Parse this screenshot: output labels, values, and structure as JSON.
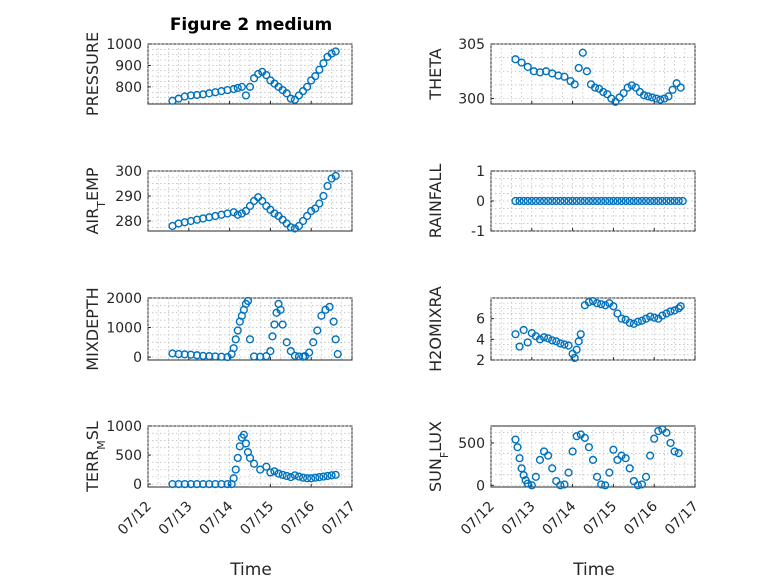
{
  "figure": {
    "title": "Figure 2 medium",
    "xlabel": "Time",
    "x_tick_labels": [
      "07/12",
      "07/13",
      "07/14",
      "07/15",
      "07/16",
      "07/17"
    ],
    "marker_color": "#0072BD"
  },
  "chart_data": [
    {
      "type": "scatter",
      "title": "Figure 2 medium",
      "ylabel": "PRESSURE",
      "ylim": [
        720,
        1000
      ],
      "yticks": [
        800,
        900,
        1000
      ],
      "xlim": [
        "07/12",
        "07/17"
      ],
      "grid": true,
      "series": [
        {
          "x": [
            0.6,
            0.75,
            0.9,
            1.05,
            1.2,
            1.35,
            1.5,
            1.65,
            1.8,
            1.95,
            2.1,
            2.2,
            2.3,
            2.4,
            2.5,
            2.6,
            2.7,
            2.8,
            2.9,
            3.0,
            3.1,
            3.2,
            3.3,
            3.4,
            3.5,
            3.6,
            3.7,
            3.8,
            3.9,
            4.0,
            4.1,
            4.2,
            4.3,
            4.4,
            4.5,
            4.6
          ],
          "y": [
            735,
            745,
            755,
            760,
            762,
            765,
            770,
            775,
            780,
            785,
            790,
            795,
            800,
            760,
            800,
            840,
            860,
            870,
            855,
            830,
            815,
            800,
            785,
            770,
            745,
            740,
            760,
            780,
            800,
            830,
            850,
            880,
            910,
            940,
            955,
            965
          ]
        }
      ]
    },
    {
      "type": "scatter",
      "ylabel": "THETA",
      "ylim": [
        299.5,
        305
      ],
      "yticks": [
        300,
        305
      ],
      "xlim": [
        "07/12",
        "07/17"
      ],
      "grid": true,
      "series": [
        {
          "x": [
            0.6,
            0.75,
            0.9,
            1.05,
            1.2,
            1.35,
            1.5,
            1.65,
            1.8,
            1.95,
            2.05,
            2.15,
            2.25,
            2.35,
            2.45,
            2.55,
            2.65,
            2.75,
            2.85,
            2.95,
            3.05,
            3.15,
            3.25,
            3.35,
            3.45,
            3.55,
            3.65,
            3.75,
            3.85,
            3.95,
            4.05,
            4.15,
            4.25,
            4.35,
            4.45,
            4.55,
            4.65
          ],
          "y": [
            303.6,
            303.3,
            302.9,
            302.5,
            302.4,
            302.5,
            302.3,
            302.1,
            302.0,
            301.6,
            301.3,
            302.8,
            304.2,
            302.5,
            301.3,
            301.0,
            300.9,
            300.6,
            300.4,
            300.0,
            299.7,
            300.1,
            300.5,
            301.0,
            301.2,
            301.0,
            300.6,
            300.3,
            300.2,
            300.1,
            300.0,
            299.9,
            300.0,
            300.2,
            300.8,
            301.4,
            301.0
          ]
        }
      ]
    },
    {
      "type": "scatter",
      "ylabel": "AIR_TEMP",
      "ylim": [
        276,
        300
      ],
      "yticks": [
        280,
        290,
        300
      ],
      "xlim": [
        "07/12",
        "07/17"
      ],
      "grid": true,
      "series": [
        {
          "x": [
            0.6,
            0.75,
            0.9,
            1.05,
            1.2,
            1.35,
            1.5,
            1.65,
            1.8,
            1.95,
            2.1,
            2.2,
            2.3,
            2.4,
            2.5,
            2.6,
            2.7,
            2.8,
            2.9,
            3.0,
            3.1,
            3.2,
            3.3,
            3.4,
            3.5,
            3.6,
            3.7,
            3.8,
            3.9,
            4.0,
            4.1,
            4.2,
            4.3,
            4.4,
            4.5,
            4.6
          ],
          "y": [
            278,
            279,
            279.5,
            280,
            280.5,
            281,
            281.5,
            282,
            282.5,
            283,
            283.5,
            282.5,
            283,
            284,
            286,
            288,
            289.5,
            288,
            286,
            284.5,
            283,
            282,
            280.5,
            279,
            277.5,
            277,
            278,
            280,
            282,
            284,
            285,
            287,
            290,
            294,
            297,
            298
          ]
        }
      ]
    },
    {
      "type": "scatter",
      "ylabel": "RAINFALL",
      "ylim": [
        -1,
        1
      ],
      "yticks": [
        -1,
        0,
        1
      ],
      "xlim": [
        "07/12",
        "07/17"
      ],
      "grid": true,
      "series": [
        {
          "x": [
            0.6,
            0.7,
            0.8,
            0.9,
            1.0,
            1.1,
            1.2,
            1.3,
            1.4,
            1.5,
            1.6,
            1.7,
            1.8,
            1.9,
            2.0,
            2.1,
            2.2,
            2.3,
            2.4,
            2.5,
            2.6,
            2.7,
            2.8,
            2.9,
            3.0,
            3.1,
            3.2,
            3.3,
            3.4,
            3.5,
            3.6,
            3.7,
            3.8,
            3.9,
            4.0,
            4.1,
            4.2,
            4.3,
            4.4,
            4.5,
            4.6,
            4.7
          ],
          "y": [
            0,
            0,
            0,
            0,
            0,
            0,
            0,
            0,
            0,
            0,
            0,
            0,
            0,
            0,
            0,
            0,
            0,
            0,
            0,
            0,
            0,
            0,
            0,
            0,
            0,
            0,
            0,
            0,
            0,
            0,
            0,
            0,
            0,
            0,
            0,
            0,
            0,
            0,
            0,
            0,
            0,
            0
          ]
        }
      ]
    },
    {
      "type": "scatter",
      "ylabel": "MIXDEPTH",
      "ylim": [
        -100,
        2000
      ],
      "yticks": [
        0,
        1000,
        2000
      ],
      "xlim": [
        "07/12",
        "07/17"
      ],
      "grid": true,
      "series": [
        {
          "x": [
            0.6,
            0.75,
            0.9,
            1.05,
            1.2,
            1.35,
            1.5,
            1.65,
            1.8,
            1.95,
            2.05,
            2.1,
            2.15,
            2.2,
            2.25,
            2.3,
            2.35,
            2.4,
            2.45,
            2.5,
            2.6,
            2.75,
            2.9,
            3.0,
            3.05,
            3.1,
            3.15,
            3.2,
            3.25,
            3.3,
            3.4,
            3.5,
            3.6,
            3.7,
            3.8,
            3.85,
            3.95,
            4.05,
            4.15,
            4.25,
            4.35,
            4.45,
            4.55,
            4.6,
            4.65
          ],
          "y": [
            120,
            100,
            90,
            80,
            60,
            40,
            30,
            20,
            10,
            0,
            100,
            300,
            600,
            900,
            1200,
            1400,
            1600,
            1800,
            1900,
            600,
            20,
            10,
            30,
            200,
            700,
            1100,
            1500,
            1800,
            1600,
            1100,
            500,
            200,
            40,
            20,
            10,
            30,
            150,
            500,
            900,
            1400,
            1600,
            1700,
            1200,
            600,
            100
          ]
        }
      ]
    },
    {
      "type": "scatter",
      "ylabel": "H2OMIXRA",
      "ylim": [
        2,
        8
      ],
      "yticks": [
        2,
        4,
        6
      ],
      "xlim": [
        "07/12",
        "07/17"
      ],
      "grid": true,
      "series": [
        {
          "x": [
            0.6,
            0.7,
            0.8,
            0.9,
            1.0,
            1.1,
            1.2,
            1.3,
            1.4,
            1.5,
            1.6,
            1.7,
            1.8,
            1.9,
            2.0,
            2.05,
            2.1,
            2.15,
            2.2,
            2.3,
            2.4,
            2.5,
            2.6,
            2.7,
            2.8,
            2.9,
            3.0,
            3.1,
            3.2,
            3.3,
            3.4,
            3.5,
            3.6,
            3.7,
            3.8,
            3.9,
            4.0,
            4.1,
            4.2,
            4.3,
            4.4,
            4.5,
            4.6,
            4.65
          ],
          "y": [
            4.5,
            3.3,
            4.9,
            3.7,
            4.6,
            4.3,
            4.0,
            4.2,
            4.1,
            3.9,
            3.8,
            3.6,
            3.5,
            3.4,
            2.6,
            2.2,
            3.0,
            3.8,
            4.5,
            7.3,
            7.6,
            7.7,
            7.5,
            7.4,
            7.3,
            7.5,
            7.2,
            6.5,
            6.0,
            5.9,
            5.6,
            5.5,
            5.7,
            5.8,
            6.0,
            6.2,
            6.1,
            6.0,
            6.3,
            6.5,
            6.7,
            6.8,
            7.0,
            7.2
          ]
        }
      ]
    },
    {
      "type": "scatter",
      "ylabel": "TERR_MSL",
      "ylim": [
        -50,
        1000
      ],
      "yticks": [
        0,
        500,
        1000
      ],
      "xlim": [
        "07/12",
        "07/17"
      ],
      "grid": true,
      "series": [
        {
          "x": [
            0.6,
            0.75,
            0.9,
            1.05,
            1.2,
            1.35,
            1.5,
            1.65,
            1.8,
            1.95,
            2.05,
            2.1,
            2.15,
            2.2,
            2.25,
            2.3,
            2.35,
            2.4,
            2.45,
            2.5,
            2.6,
            2.75,
            2.9,
            3.0,
            3.1,
            3.2,
            3.3,
            3.4,
            3.5,
            3.6,
            3.7,
            3.8,
            3.9,
            4.0,
            4.1,
            4.2,
            4.3,
            4.4,
            4.5,
            4.6
          ],
          "y": [
            0,
            0,
            0,
            0,
            0,
            0,
            0,
            0,
            0,
            0,
            0,
            100,
            250,
            450,
            650,
            800,
            850,
            700,
            550,
            450,
            350,
            250,
            300,
            200,
            220,
            180,
            160,
            140,
            120,
            150,
            130,
            110,
            100,
            100,
            110,
            120,
            130,
            140,
            150,
            160
          ]
        }
      ]
    },
    {
      "type": "scatter",
      "ylabel": "SUN_FLUX",
      "ylim": [
        -20,
        700
      ],
      "yticks": [
        0,
        500
      ],
      "xlim": [
        "07/12",
        "07/17"
      ],
      "grid": true,
      "series": [
        {
          "x": [
            0.6,
            0.65,
            0.7,
            0.75,
            0.8,
            0.85,
            0.9,
            1.0,
            1.1,
            1.2,
            1.3,
            1.4,
            1.5,
            1.6,
            1.7,
            1.8,
            1.9,
            2.0,
            2.1,
            2.2,
            2.3,
            2.4,
            2.5,
            2.6,
            2.7,
            2.8,
            2.9,
            3.0,
            3.1,
            3.2,
            3.3,
            3.4,
            3.5,
            3.6,
            3.7,
            3.8,
            3.9,
            4.0,
            4.1,
            4.2,
            4.3,
            4.4,
            4.5,
            4.6
          ],
          "y": [
            540,
            450,
            320,
            200,
            120,
            60,
            20,
            0,
            100,
            300,
            400,
            350,
            200,
            50,
            0,
            10,
            150,
            400,
            580,
            600,
            560,
            450,
            300,
            100,
            10,
            0,
            150,
            420,
            300,
            350,
            320,
            200,
            50,
            0,
            10,
            100,
            350,
            550,
            640,
            660,
            620,
            500,
            400,
            380
          ]
        }
      ]
    }
  ]
}
